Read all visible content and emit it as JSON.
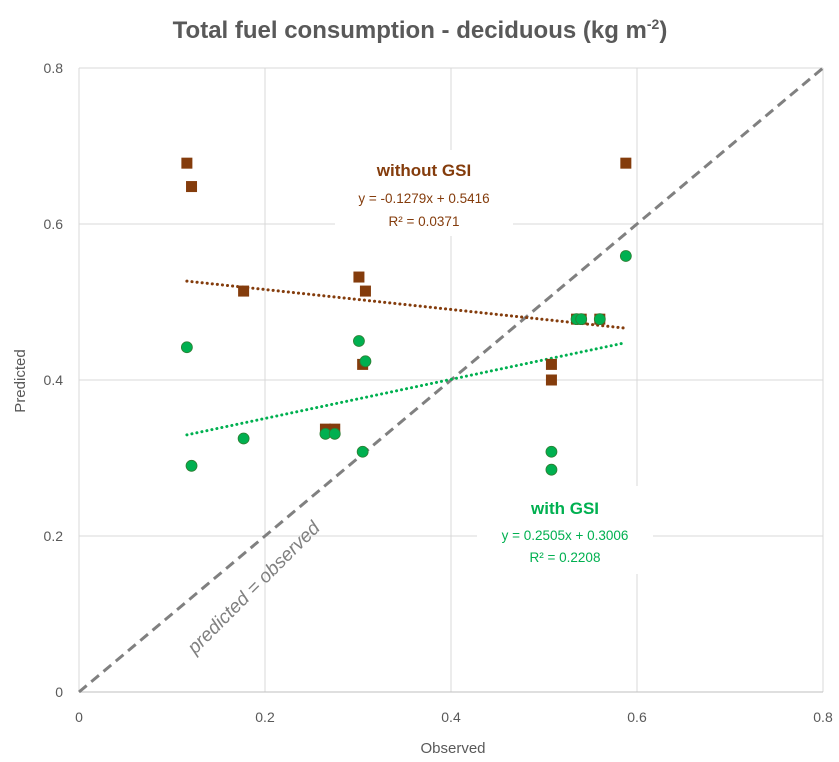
{
  "chart_data": {
    "type": "scatter",
    "title": "Total fuel consumption - deciduous (kg m",
    "title_superscript": "-2",
    "title_suffix": ")",
    "xlabel": "Observed",
    "ylabel": "Predicted",
    "xlim": [
      0,
      0.8
    ],
    "ylim": [
      0,
      0.8
    ],
    "x_ticks": [
      "0",
      "0.2",
      "0.4",
      "0.6",
      "0.8"
    ],
    "y_ticks": [
      "0",
      "0.2",
      "0.4",
      "0.6",
      "0.8"
    ],
    "grid": true,
    "series": [
      {
        "name": "without GSI",
        "marker": "square",
        "color": "#843C0C",
        "points": [
          {
            "x": 0.116,
            "y": 0.678
          },
          {
            "x": 0.121,
            "y": 0.648
          },
          {
            "x": 0.177,
            "y": 0.514
          },
          {
            "x": 0.265,
            "y": 0.337
          },
          {
            "x": 0.275,
            "y": 0.337
          },
          {
            "x": 0.301,
            "y": 0.532
          },
          {
            "x": 0.305,
            "y": 0.42
          },
          {
            "x": 0.308,
            "y": 0.514
          },
          {
            "x": 0.508,
            "y": 0.42
          },
          {
            "x": 0.508,
            "y": 0.4
          },
          {
            "x": 0.535,
            "y": 0.478
          },
          {
            "x": 0.54,
            "y": 0.478
          },
          {
            "x": 0.56,
            "y": 0.478
          },
          {
            "x": 0.588,
            "y": 0.678
          }
        ],
        "trendline": {
          "slope": -0.1279,
          "intercept": 0.5416,
          "x_range": [
            0.116,
            0.588
          ]
        },
        "label": "without GSI",
        "equation": "y = -0.1279x + 0.5416",
        "r_squared": "R² = 0.0371"
      },
      {
        "name": "with GSI",
        "marker": "circle",
        "color": "#00B050",
        "points": [
          {
            "x": 0.116,
            "y": 0.442
          },
          {
            "x": 0.121,
            "y": 0.29
          },
          {
            "x": 0.177,
            "y": 0.325
          },
          {
            "x": 0.265,
            "y": 0.331
          },
          {
            "x": 0.275,
            "y": 0.331
          },
          {
            "x": 0.301,
            "y": 0.45
          },
          {
            "x": 0.305,
            "y": 0.308
          },
          {
            "x": 0.308,
            "y": 0.424
          },
          {
            "x": 0.508,
            "y": 0.308
          },
          {
            "x": 0.508,
            "y": 0.285
          },
          {
            "x": 0.535,
            "y": 0.478
          },
          {
            "x": 0.54,
            "y": 0.478
          },
          {
            "x": 0.56,
            "y": 0.478
          },
          {
            "x": 0.588,
            "y": 0.559
          }
        ],
        "trendline": {
          "slope": 0.2505,
          "intercept": 0.3006,
          "x_range": [
            0.116,
            0.588
          ]
        },
        "label": "with GSI",
        "equation": "y = 0.2505x + 0.3006",
        "r_squared": "R² = 0.2208"
      }
    ],
    "reference_line": {
      "label": "predicted = observed",
      "color": "#808080",
      "from": [
        0,
        0
      ],
      "to": [
        0.8,
        0.8
      ]
    }
  }
}
